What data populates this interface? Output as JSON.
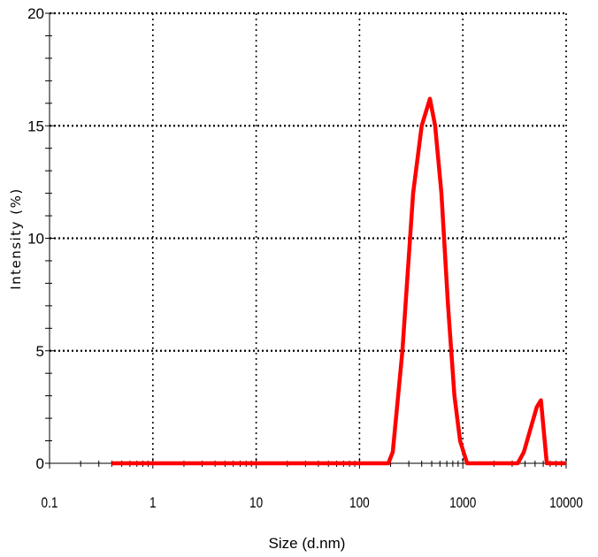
{
  "chart_data": {
    "type": "line",
    "title": "",
    "xlabel": "Size (d.nm)",
    "ylabel": "Intensity (%)",
    "xscale": "log",
    "xlim": [
      0.1,
      10000
    ],
    "ylim": [
      0,
      20
    ],
    "x_ticks": [
      {
        "value": 0.1,
        "label": "0.1"
      },
      {
        "value": 1,
        "label": "1"
      },
      {
        "value": 10,
        "label": "10"
      },
      {
        "value": 100,
        "label": "100"
      },
      {
        "value": 1000,
        "label": "1000"
      },
      {
        "value": 10000,
        "label": "10000"
      }
    ],
    "y_ticks": [
      {
        "value": 0,
        "label": "0"
      },
      {
        "value": 5,
        "label": "5"
      },
      {
        "value": 10,
        "label": "10"
      },
      {
        "value": 15,
        "label": "15"
      },
      {
        "value": 20,
        "label": "20"
      }
    ],
    "grid": true,
    "grid_style": "dotted",
    "series": [
      {
        "color": "#ff0000",
        "x": [
          0.4,
          1,
          10,
          100,
          190,
          210,
          260,
          330,
          400,
          480,
          540,
          620,
          720,
          830,
          940,
          1100,
          1300,
          3400,
          3900,
          4500,
          5200,
          5700,
          6500,
          10000
        ],
        "y": [
          0,
          0,
          0,
          0,
          0,
          0.5,
          5,
          12,
          15,
          16.2,
          15,
          12,
          7,
          3,
          1,
          0,
          0,
          0,
          0.5,
          1.5,
          2.5,
          2.8,
          0,
          0
        ]
      }
    ]
  }
}
